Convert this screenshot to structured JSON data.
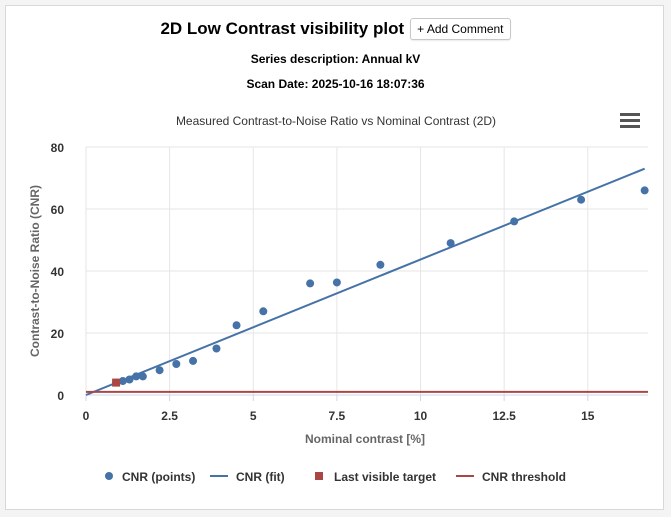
{
  "header": {
    "title": "2D Low Contrast visibility plot",
    "add_comment_label": "+ Add Comment",
    "series_description": "Series description: Annual kV",
    "scan_date": "Scan Date: 2025-10-16 18:07:36",
    "menu_icon": "hamburger-menu-icon"
  },
  "colors": {
    "points": "#4572a7",
    "fit": "#4572a7",
    "last_visible": "#aa4643",
    "threshold": "#aa4643"
  },
  "chart_data": {
    "type": "scatter",
    "title": "Measured Contrast-to-Noise Ratio vs Nominal Contrast (2D)",
    "xlabel": "Nominal contrast [%]",
    "ylabel": "Contrast-to-Noise Ratio (CNR)",
    "xlim": [
      0,
      16.8
    ],
    "ylim": [
      0,
      80
    ],
    "xticks": [
      0,
      2.5,
      5,
      7.5,
      10,
      12.5,
      15
    ],
    "xtick_labels": [
      "0",
      "2.5",
      "5",
      "7.5",
      "10",
      "12.5",
      "15"
    ],
    "yticks": [
      0,
      20,
      40,
      60,
      80
    ],
    "ytick_labels": [
      "0",
      "20",
      "40",
      "60",
      "80"
    ],
    "grid": true,
    "legend_position": "bottom-center",
    "series": [
      {
        "name": "CNR (points)",
        "kind": "points",
        "x": [
          0.9,
          1.1,
          1.3,
          1.5,
          1.7,
          2.2,
          2.7,
          3.2,
          3.9,
          4.5,
          5.3,
          6.7,
          7.5,
          8.8,
          10.9,
          12.8,
          14.8,
          16.7
        ],
        "y": [
          4,
          4.5,
          5,
          6,
          6,
          8,
          10,
          11,
          15,
          22.5,
          27,
          36,
          36.3,
          42,
          49,
          56,
          63,
          66
        ]
      },
      {
        "name": "CNR (fit)",
        "kind": "line",
        "x": [
          0,
          16.7
        ],
        "y": [
          0,
          73
        ]
      },
      {
        "name": "Last visible target",
        "kind": "marker",
        "x": [
          0.9
        ],
        "y": [
          4
        ]
      },
      {
        "name": "CNR threshold",
        "kind": "hline",
        "x": [
          0,
          16.8
        ],
        "y": [
          1,
          1
        ]
      }
    ]
  }
}
